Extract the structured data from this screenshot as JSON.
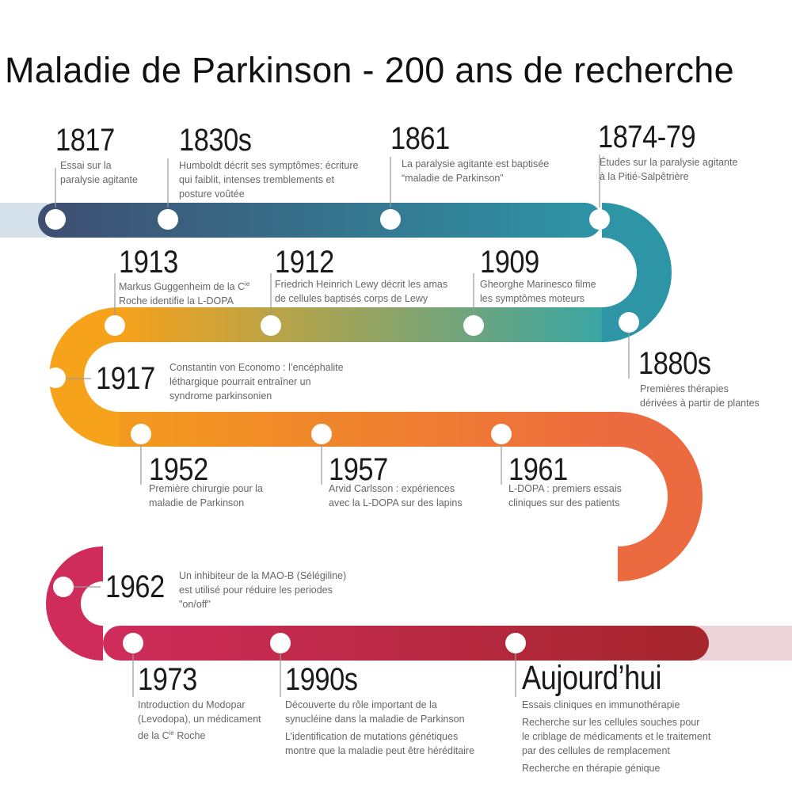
{
  "title": "Maladie de Parkinson - 200 ans de recherche",
  "colors": {
    "row1": [
      "#3f4e71",
      "#2e95a6"
    ],
    "row2": [
      "#f7a21b",
      "#3aa6a4"
    ],
    "row3": [
      "#f39a1e",
      "#ec6a3f"
    ],
    "row4": [
      "#cf2c5c",
      "#a5262c"
    ],
    "text_year": "#1a1a1a",
    "text_desc": "#666666"
  },
  "events": {
    "e1817": {
      "year": "1817",
      "lines": [
        "Essai sur la",
        "paralysie agitante"
      ]
    },
    "e1830": {
      "year": "1830s",
      "lines": [
        "Humboldt décrit ses symptômes: écriture",
        "qui faiblit, intenses tremblements et",
        "posture voûtée"
      ]
    },
    "e1861": {
      "year": "1861",
      "lines": [
        "La paralysie agitante est baptisée",
        "“maladie de Parkinson”"
      ]
    },
    "e1874": {
      "year": "1874-79",
      "lines": [
        "Études sur la paralysie agitante",
        "à la Pitié-Salpêtrière"
      ]
    },
    "e1913": {
      "year": "1913",
      "line1_pre": "Markus Guggenheim de la C",
      "line1_sup": "ie",
      "line2": "Roche identifie la L-DOPA"
    },
    "e1912": {
      "year": "1912",
      "lines": [
        "Friedrich Heinrich Lewy décrit les amas",
        "de cellules baptisés corps de Lewy"
      ]
    },
    "e1909": {
      "year": "1909",
      "lines": [
        "Gheorghe Marinesco filme",
        "les symptômes moteurs"
      ]
    },
    "e1880": {
      "year": "1880s",
      "lines": [
        "Premières thérapies",
        "dérivées à partir de plantes"
      ]
    },
    "e1917": {
      "year": "1917",
      "lines": [
        "Constantin von Economo : l’encéphalite",
        "léthargique pourrait entraîner un",
        "syndrome parkinsonien"
      ]
    },
    "e1952": {
      "year": "1952",
      "lines": [
        "Première chirurgie pour la",
        "maladie de Parkinson"
      ]
    },
    "e1957": {
      "year": "1957",
      "lines": [
        "Arvid Carlsson : expériences",
        "avec la L-DOPA sur des lapins"
      ]
    },
    "e1961": {
      "year": "1961",
      "lines": [
        "L-DOPA : premiers essais",
        "cliniques sur des patients"
      ]
    },
    "e1962": {
      "year": "1962",
      "lines": [
        "Un inhibiteur de la MAO-B (Sélégiline)",
        "est utilisé pour réduire les periodes",
        "\"on/off\""
      ]
    },
    "e1973": {
      "year": "1973",
      "line1": "Introduction du Modopar",
      "line2": "(Levodopa), un médicament",
      "line3_pre": "de la C",
      "line3_sup": "ie",
      "line3_post": " Roche"
    },
    "e1990": {
      "year": "1990s",
      "lines": [
        "Découverte du rôle important de la",
        "synucléine dans la maladie de Parkinson",
        "L’identification de mutations génétiques",
        "montre que la maladie peut être héréditaire"
      ]
    },
    "today": {
      "year": "Aujourd’hui",
      "lines": [
        "Essais cliniques en immunothérapie",
        "Recherche sur les cellules souches pour",
        "le criblage de médicaments et le traitement",
        "par des cellules de remplacement",
        "Recherche en thérapie génique"
      ]
    }
  }
}
